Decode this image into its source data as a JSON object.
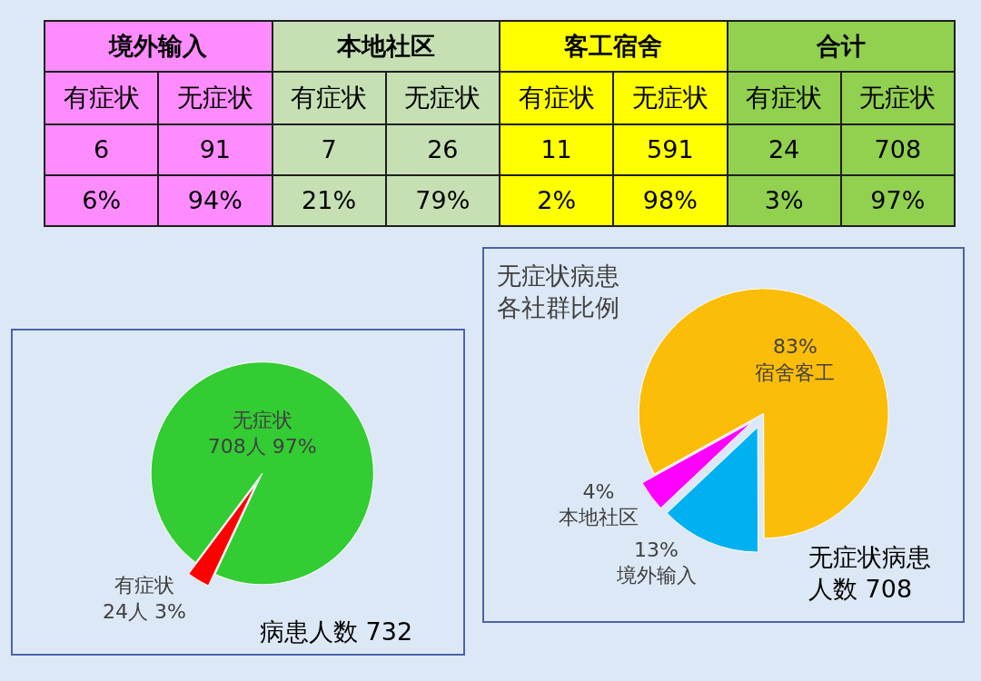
{
  "chart_data": [
    {
      "type": "heatmap",
      "categories": [
        "有症状",
        "无症状",
        "有症状",
        "无症状",
        "有症状",
        "无症状",
        "有症状",
        "无症状"
      ],
      "y_categories": [
        null,
        null
      ],
      "cells": [
        [
          6,
          91,
          7,
          26,
          11,
          591,
          24,
          708
        ],
        [
          6,
          94,
          21,
          79,
          2,
          98,
          3,
          97
        ]
      ],
      "cell_labels": [
        [
          "6",
          "91",
          "7",
          "26",
          "11",
          "591",
          "24",
          "708"
        ],
        [
          "6%",
          "94%",
          "21%",
          "79%",
          "2%",
          "98%",
          "3%",
          "97%"
        ]
      ],
      "colors": [
        "#ff8cff",
        "#ff8cff",
        "#c6e0b4",
        "#c6e0b4",
        "#ffff00",
        "#ffff00",
        "#92d050",
        "#92d050"
      ],
      "annotations": [
        "境外输入",
        "本地社区",
        "客工宿舍",
        "合计"
      ]
    },
    {
      "type": "pie",
      "categories": [
        "有症状",
        "无症状"
      ],
      "values": [
        24,
        708
      ],
      "value_labels": [
        "24人 3%",
        "708人 97%"
      ],
      "colors": [
        "#ff0000",
        "#33cc33"
      ],
      "annotations": [
        "病患人数 732"
      ]
    },
    {
      "type": "pie",
      "title": "无症状病患各社群比例",
      "categories": [
        "宿舍客工",
        "境外输入",
        "本地社区"
      ],
      "values": [
        83,
        13,
        4
      ],
      "value_labels": [
        "83%",
        "13%",
        "4%"
      ],
      "colors": [
        "#fbbd08",
        "#00b0f0",
        "#ff00ff"
      ],
      "annotations": [
        "无症状病患人数 708"
      ]
    }
  ]
}
